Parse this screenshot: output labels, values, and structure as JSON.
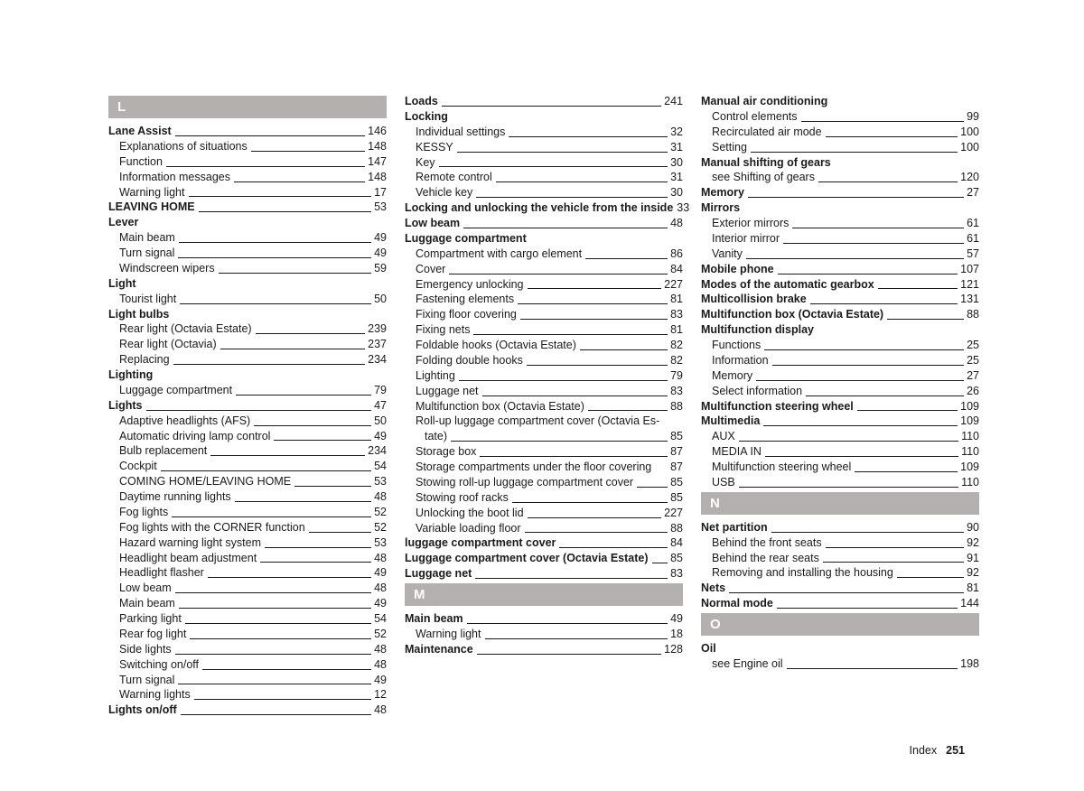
{
  "footer": {
    "label": "Index",
    "page": "251"
  },
  "letters": {
    "L": "L",
    "M": "M",
    "N": "N",
    "O": "O"
  },
  "col1": [
    {
      "t": "letter",
      "key": "L"
    },
    {
      "t": "e",
      "b": true,
      "label": "Lane Assist",
      "pg": "146"
    },
    {
      "t": "e",
      "s": true,
      "label": "Explanations of situations",
      "pg": "148"
    },
    {
      "t": "e",
      "s": true,
      "label": "Function",
      "pg": "147"
    },
    {
      "t": "e",
      "s": true,
      "label": "Information messages",
      "pg": "148"
    },
    {
      "t": "e",
      "s": true,
      "label": "Warning light",
      "pg": "17"
    },
    {
      "t": "e",
      "b": true,
      "label": "LEAVING HOME",
      "pg": "53"
    },
    {
      "t": "h",
      "label": "Lever"
    },
    {
      "t": "e",
      "s": true,
      "label": "Main beam",
      "pg": "49"
    },
    {
      "t": "e",
      "s": true,
      "label": "Turn signal",
      "pg": "49"
    },
    {
      "t": "e",
      "s": true,
      "label": "Windscreen wipers",
      "pg": "59"
    },
    {
      "t": "h",
      "label": "Light"
    },
    {
      "t": "e",
      "s": true,
      "label": "Tourist light",
      "pg": "50"
    },
    {
      "t": "h",
      "label": "Light bulbs"
    },
    {
      "t": "e",
      "s": true,
      "label": "Rear light (Octavia Estate)",
      "pg": "239"
    },
    {
      "t": "e",
      "s": true,
      "label": "Rear light (Octavia)",
      "pg": "237"
    },
    {
      "t": "e",
      "s": true,
      "label": "Replacing",
      "pg": "234"
    },
    {
      "t": "h",
      "label": "Lighting"
    },
    {
      "t": "e",
      "s": true,
      "label": "Luggage compartment",
      "pg": "79"
    },
    {
      "t": "e",
      "b": true,
      "label": "Lights",
      "pg": "47"
    },
    {
      "t": "e",
      "s": true,
      "label": "Adaptive headlights (AFS)",
      "pg": "50"
    },
    {
      "t": "e",
      "s": true,
      "label": "Automatic driving lamp control",
      "pg": "49"
    },
    {
      "t": "e",
      "s": true,
      "label": "Bulb replacement",
      "pg": "234"
    },
    {
      "t": "e",
      "s": true,
      "label": "Cockpit",
      "pg": "54"
    },
    {
      "t": "e",
      "s": true,
      "label": "COMING HOME/LEAVING HOME",
      "pg": "53"
    },
    {
      "t": "e",
      "s": true,
      "label": "Daytime running lights",
      "pg": "48"
    },
    {
      "t": "e",
      "s": true,
      "label": "Fog lights",
      "pg": "52"
    },
    {
      "t": "e",
      "s": true,
      "label": "Fog lights with the CORNER function",
      "pg": "52"
    },
    {
      "t": "e",
      "s": true,
      "label": "Hazard warning light system",
      "pg": "53"
    },
    {
      "t": "e",
      "s": true,
      "label": "Headlight beam adjustment",
      "pg": "48"
    },
    {
      "t": "e",
      "s": true,
      "label": "Headlight flasher",
      "pg": "49"
    },
    {
      "t": "e",
      "s": true,
      "label": "Low beam",
      "pg": "48"
    },
    {
      "t": "e",
      "s": true,
      "label": "Main beam",
      "pg": "49"
    },
    {
      "t": "e",
      "s": true,
      "label": "Parking light",
      "pg": "54"
    },
    {
      "t": "e",
      "s": true,
      "label": "Rear fog light",
      "pg": "52"
    },
    {
      "t": "e",
      "s": true,
      "label": "Side lights",
      "pg": "48"
    },
    {
      "t": "e",
      "s": true,
      "label": "Switching on/off",
      "pg": "48"
    },
    {
      "t": "e",
      "s": true,
      "label": "Turn signal",
      "pg": "49"
    },
    {
      "t": "e",
      "s": true,
      "label": "Warning lights",
      "pg": "12"
    },
    {
      "t": "e",
      "b": true,
      "label": "Lights on/off",
      "pg": "48"
    }
  ],
  "col2": [
    {
      "t": "e",
      "b": true,
      "label": "Loads",
      "pg": "241"
    },
    {
      "t": "h",
      "label": "Locking"
    },
    {
      "t": "e",
      "s": true,
      "label": "Individual settings",
      "pg": "32"
    },
    {
      "t": "e",
      "s": true,
      "label": "KESSY",
      "pg": "31"
    },
    {
      "t": "e",
      "s": true,
      "label": "Key",
      "pg": "30"
    },
    {
      "t": "e",
      "s": true,
      "label": "Remote control",
      "pg": "31"
    },
    {
      "t": "e",
      "s": true,
      "label": "Vehicle key",
      "pg": "30"
    },
    {
      "t": "e",
      "b": true,
      "noLeader": true,
      "label": "Locking and unlocking the vehicle from the inside",
      "pg": "33"
    },
    {
      "t": "e",
      "b": true,
      "label": "Low beam",
      "pg": "48"
    },
    {
      "t": "h",
      "label": "Luggage compartment"
    },
    {
      "t": "e",
      "s": true,
      "label": "Compartment with cargo element",
      "pg": "86"
    },
    {
      "t": "e",
      "s": true,
      "label": "Cover",
      "pg": "84"
    },
    {
      "t": "e",
      "s": true,
      "label": "Emergency unlocking",
      "pg": "227"
    },
    {
      "t": "e",
      "s": true,
      "label": "Fastening elements",
      "pg": "81"
    },
    {
      "t": "e",
      "s": true,
      "label": "Fixing floor covering",
      "pg": "83"
    },
    {
      "t": "e",
      "s": true,
      "label": "Fixing nets",
      "pg": "81"
    },
    {
      "t": "e",
      "s": true,
      "label": "Foldable hooks (Octavia Estate)",
      "pg": "82"
    },
    {
      "t": "e",
      "s": true,
      "label": "Folding double hooks",
      "pg": "82"
    },
    {
      "t": "e",
      "s": true,
      "label": "Lighting",
      "pg": "79"
    },
    {
      "t": "e",
      "s": true,
      "label": "Luggage net",
      "pg": "83"
    },
    {
      "t": "e",
      "s": true,
      "label": "Multifunction box (Octavia Estate)",
      "pg": "88"
    },
    {
      "t": "w2",
      "l1": "Roll-up luggage compartment cover (Octavia Es-",
      "l2": "tate)",
      "pg": "85"
    },
    {
      "t": "e",
      "s": true,
      "label": "Storage box",
      "pg": "87"
    },
    {
      "t": "e",
      "s": true,
      "noLeader": true,
      "label": "Storage compartments under the floor covering",
      "pg": "87"
    },
    {
      "t": "e",
      "s": true,
      "label": "Stowing roll-up luggage compartment cover",
      "pg": "85"
    },
    {
      "t": "e",
      "s": true,
      "label": "Stowing roof racks",
      "pg": "85"
    },
    {
      "t": "e",
      "s": true,
      "label": "Unlocking the boot lid",
      "pg": "227"
    },
    {
      "t": "e",
      "s": true,
      "label": "Variable loading floor",
      "pg": "88"
    },
    {
      "t": "e",
      "b": true,
      "label": "luggage compartment cover",
      "pg": "84"
    },
    {
      "t": "e",
      "b": true,
      "label": "Luggage compartment cover (Octavia Estate)",
      "pg": "85"
    },
    {
      "t": "e",
      "b": true,
      "label": "Luggage net",
      "pg": "83"
    },
    {
      "t": "letter",
      "key": "M"
    },
    {
      "t": "e",
      "b": true,
      "label": "Main beam",
      "pg": "49"
    },
    {
      "t": "e",
      "s": true,
      "label": "Warning light",
      "pg": "18"
    },
    {
      "t": "e",
      "b": true,
      "label": "Maintenance",
      "pg": "128"
    }
  ],
  "col3": [
    {
      "t": "h",
      "label": "Manual air conditioning"
    },
    {
      "t": "e",
      "s": true,
      "label": "Control elements",
      "pg": "99"
    },
    {
      "t": "e",
      "s": true,
      "label": "Recirculated air mode",
      "pg": "100"
    },
    {
      "t": "e",
      "s": true,
      "label": "Setting",
      "pg": "100"
    },
    {
      "t": "h",
      "label": "Manual shifting of gears"
    },
    {
      "t": "e",
      "s": true,
      "label": "see Shifting of gears",
      "pg": "120"
    },
    {
      "t": "e",
      "b": true,
      "label": "Memory",
      "pg": "27"
    },
    {
      "t": "h",
      "label": "Mirrors"
    },
    {
      "t": "e",
      "s": true,
      "label": "Exterior mirrors",
      "pg": "61"
    },
    {
      "t": "e",
      "s": true,
      "label": "Interior mirror",
      "pg": "61"
    },
    {
      "t": "e",
      "s": true,
      "label": "Vanity",
      "pg": "57"
    },
    {
      "t": "e",
      "b": true,
      "label": "Mobile phone",
      "pg": "107"
    },
    {
      "t": "e",
      "b": true,
      "label": "Modes of the automatic gearbox",
      "pg": "121"
    },
    {
      "t": "e",
      "b": true,
      "label": "Multicollision brake",
      "pg": "131"
    },
    {
      "t": "e",
      "b": true,
      "label": "Multifunction box (Octavia Estate)",
      "pg": "88"
    },
    {
      "t": "h",
      "label": "Multifunction display"
    },
    {
      "t": "e",
      "s": true,
      "label": "Functions",
      "pg": "25"
    },
    {
      "t": "e",
      "s": true,
      "label": "Information",
      "pg": "25"
    },
    {
      "t": "e",
      "s": true,
      "label": "Memory",
      "pg": "27"
    },
    {
      "t": "e",
      "s": true,
      "label": "Select information",
      "pg": "26"
    },
    {
      "t": "e",
      "b": true,
      "label": "Multifunction steering wheel",
      "pg": "109"
    },
    {
      "t": "e",
      "b": true,
      "label": "Multimedia",
      "pg": "109"
    },
    {
      "t": "e",
      "s": true,
      "label": "AUX",
      "pg": "110"
    },
    {
      "t": "e",
      "s": true,
      "label": "MEDIA IN",
      "pg": "110"
    },
    {
      "t": "e",
      "s": true,
      "label": "Multifunction steering wheel",
      "pg": "109"
    },
    {
      "t": "e",
      "s": true,
      "label": "USB",
      "pg": "110"
    },
    {
      "t": "letter",
      "key": "N"
    },
    {
      "t": "e",
      "b": true,
      "label": "Net partition",
      "pg": "90"
    },
    {
      "t": "e",
      "s": true,
      "label": "Behind the front seats",
      "pg": "92"
    },
    {
      "t": "e",
      "s": true,
      "label": "Behind the rear seats",
      "pg": "91"
    },
    {
      "t": "e",
      "s": true,
      "label": "Removing and installing the housing",
      "pg": "92"
    },
    {
      "t": "e",
      "b": true,
      "label": "Nets",
      "pg": "81"
    },
    {
      "t": "e",
      "b": true,
      "label": "Normal mode",
      "pg": "144"
    },
    {
      "t": "letter",
      "key": "O"
    },
    {
      "t": "h",
      "label": "Oil"
    },
    {
      "t": "e",
      "s": true,
      "label": "see Engine oil",
      "pg": "198"
    }
  ]
}
